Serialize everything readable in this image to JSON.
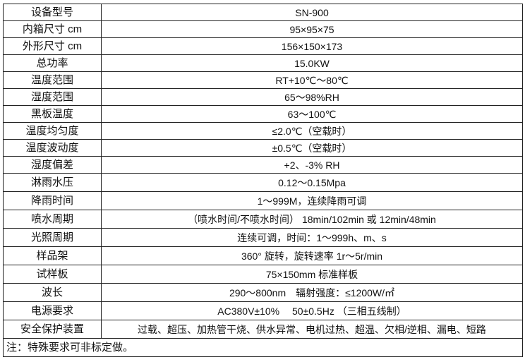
{
  "specs": [
    {
      "label": "设备型号",
      "value": "SN-900"
    },
    {
      "label": "内箱尺寸 cm",
      "value": "95×95×75"
    },
    {
      "label": "外形尺寸 cm",
      "value": "156×150×173"
    },
    {
      "label": "总功率",
      "value": "15.0KW"
    },
    {
      "label": "温度范围",
      "value": "RT+10℃～80℃"
    },
    {
      "label": "湿度范围",
      "value": "65～98%RH"
    },
    {
      "label": "黑板温度",
      "value": "63～100℃"
    },
    {
      "label": "温度均匀度",
      "value": "≤2.0℃（空载时）"
    },
    {
      "label": "温度波动度",
      "value": "±0.5℃（空载时）"
    },
    {
      "label": "湿度偏差",
      "value": "+2、-3% RH"
    },
    {
      "label": "淋雨水压",
      "value": "0.12～0.15Mpa"
    },
    {
      "label": "降雨时间",
      "value": "1～999M，连续降雨可调"
    },
    {
      "label": "喷水周期",
      "value": "（喷水时间/不喷水时间） 18min/102min 或 12min/48min"
    },
    {
      "label": "光照周期",
      "value": "连续可调，时间：1～999h、m、s"
    },
    {
      "label": "样品架",
      "value": "360° 旋转，旋转速率 1r～5r/min"
    },
    {
      "label": "试样板",
      "value": "75×150mm 标准样板"
    },
    {
      "label": "波长",
      "value": "290～800nm　辐射强度：≤1200W/㎡"
    },
    {
      "label": "电源要求",
      "value": "AC380V±10%　 50±0.5Hz （三相五线制）"
    },
    {
      "label": "安全保护装置",
      "value": "过载、超压、加热管干烧、供水异常、电机过热、超温、欠相/逆相、漏电、短路"
    }
  ],
  "note": "注：特殊要求可非标定做。"
}
